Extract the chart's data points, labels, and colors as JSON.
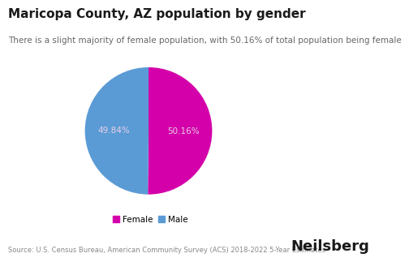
{
  "title": "Maricopa County, AZ population by gender",
  "subtitle": "There is a slight majority of female population, with 50.16% of total population being female",
  "slices": [
    50.16,
    49.84
  ],
  "labels": [
    "Female",
    "Male"
  ],
  "colors": [
    "#d400aa",
    "#5b9bd5"
  ],
  "slice_labels": [
    "50.16%",
    "49.84%"
  ],
  "slice_label_color": "#e8d0e8",
  "legend_labels": [
    "Female",
    "Male"
  ],
  "source_text": "Source: U.S. Census Bureau, American Community Survey (ACS) 2018-2022 5-Year Estimates",
  "brand_text": "Neilsberg",
  "background_color": "#ffffff",
  "title_fontsize": 11,
  "subtitle_fontsize": 7.5,
  "source_fontsize": 6,
  "brand_fontsize": 13,
  "startangle": 90
}
